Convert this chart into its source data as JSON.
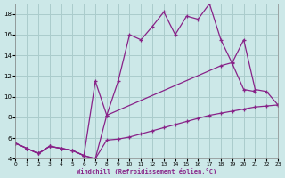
{
  "xlabel": "Windchill (Refroidissement éolien,°C)",
  "bg_color": "#cce8e8",
  "grid_color": "#aacccc",
  "line_color": "#882288",
  "xlim": [
    0,
    23
  ],
  "ylim": [
    4,
    19
  ],
  "yticks": [
    4,
    6,
    8,
    10,
    12,
    14,
    16,
    18
  ],
  "xticks": [
    0,
    1,
    2,
    3,
    4,
    5,
    6,
    7,
    8,
    9,
    10,
    11,
    12,
    13,
    14,
    15,
    16,
    17,
    18,
    19,
    20,
    21,
    22,
    23
  ],
  "series": [
    {
      "x": [
        0,
        1,
        2,
        3,
        4,
        5,
        6,
        7,
        8,
        9,
        10,
        11,
        12,
        13,
        14,
        15,
        16,
        17,
        18,
        19,
        20,
        21,
        22,
        23
      ],
      "y": [
        5.5,
        5.0,
        4.5,
        5.2,
        5.0,
        4.8,
        4.3,
        4.0,
        5.8,
        5.9,
        6.1,
        6.4,
        6.7,
        7.0,
        7.3,
        7.6,
        7.9,
        8.2,
        8.4,
        8.6,
        8.8,
        9.0,
        9.1,
        9.2
      ]
    },
    {
      "x": [
        0,
        1,
        2,
        3,
        4,
        5,
        6,
        7,
        8,
        9,
        10,
        11,
        12,
        13,
        14,
        15,
        16,
        17,
        18,
        19,
        20,
        21
      ],
      "y": [
        5.5,
        5.0,
        4.5,
        5.2,
        5.0,
        4.8,
        4.3,
        4.0,
        8.2,
        11.5,
        16.0,
        15.5,
        16.8,
        18.2,
        16.0,
        17.8,
        17.5,
        19.0,
        15.5,
        13.2,
        10.7,
        10.5
      ]
    },
    {
      "x": [
        0,
        1,
        2,
        3,
        4,
        5,
        6,
        7,
        8,
        18,
        19,
        20,
        21,
        22,
        23
      ],
      "y": [
        5.5,
        5.0,
        4.5,
        5.2,
        5.0,
        4.8,
        4.3,
        11.5,
        8.2,
        13.0,
        13.3,
        15.5,
        10.7,
        10.5,
        9.2
      ]
    }
  ]
}
